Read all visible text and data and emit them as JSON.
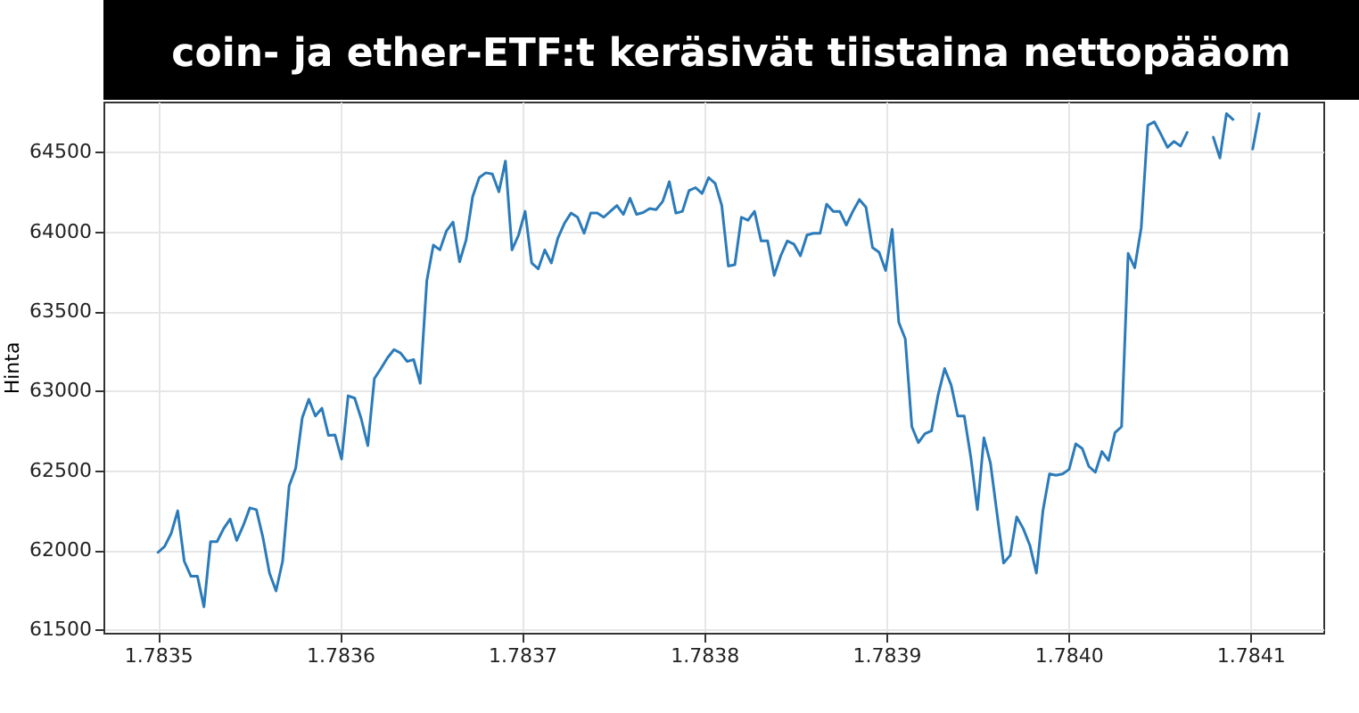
{
  "chart_data": {
    "type": "line",
    "title": "coin- ja ether-ETF:t keräsivät tiistaina nettopääom",
    "ylabel": "Hinta",
    "x": [
      1.7835,
      1.7835036,
      1.7835072,
      1.7835108,
      1.7835144,
      1.783518,
      1.7835216,
      1.7835252,
      1.7835288,
      1.7835324,
      1.783536,
      1.7835396,
      1.7835432,
      1.7835468,
      1.7835504,
      1.783554,
      1.7835576,
      1.7835612,
      1.7835648,
      1.7835684,
      1.783572,
      1.7835756,
      1.7835792,
      1.7835828,
      1.7835864,
      1.78359,
      1.7835936,
      1.7835972,
      1.7836008,
      1.7836044,
      1.783608,
      1.7836116,
      1.7836152,
      1.7836188,
      1.7836224,
      1.783626,
      1.7836296,
      1.7836332,
      1.7836368,
      1.7836404,
      1.783644,
      1.7836476,
      1.7836512,
      1.7836548,
      1.7836584,
      1.783662,
      1.7836656,
      1.7836692,
      1.7836728,
      1.7836764,
      1.78368,
      1.7836836,
      1.7836872,
      1.7836908,
      1.7836944,
      1.783698,
      1.7837016,
      1.7837052,
      1.7837088,
      1.7837124,
      1.783716,
      1.7837196,
      1.7837232,
      1.7837268,
      1.7837304,
      1.783734,
      1.7837376,
      1.7837412,
      1.7837448,
      1.7837484,
      1.783752,
      1.7837556,
      1.7837592,
      1.7837628,
      1.7837664,
      1.78377,
      1.7837736,
      1.7837772,
      1.7837808,
      1.7837844,
      1.783788,
      1.7837916,
      1.7837952,
      1.7837988,
      1.7838024,
      1.783806,
      1.7838096,
      1.7838132,
      1.7838168,
      1.7838204,
      1.783824,
      1.7838276,
      1.7838312,
      1.7838348,
      1.7838384,
      1.783842,
      1.7838456,
      1.7838492,
      1.7838528,
      1.7838564,
      1.78386,
      1.7838636,
      1.7838672,
      1.7838708,
      1.7838744,
      1.783878,
      1.7838816,
      1.7838852,
      1.7838888,
      1.7838924,
      1.783896,
      1.7838996,
      1.7839032,
      1.7839068,
      1.7839104,
      1.783914,
      1.7839176,
      1.7839212,
      1.7839248,
      1.7839284,
      1.783932,
      1.7839356,
      1.7839392,
      1.7839428,
      1.7839464,
      1.78395,
      1.7839536,
      1.7839572,
      1.7839608,
      1.7839644,
      1.783968,
      1.7839716,
      1.7839752,
      1.7839788,
      1.7839824,
      1.783986,
      1.7839896,
      1.7839932,
      1.7839968,
      1.7840004,
      1.784004,
      1.7840076,
      1.7840112,
      1.7840148,
      1.7840184,
      1.784022,
      1.7840256,
      1.7840292,
      1.7840328,
      1.7840364,
      1.78404,
      1.7840436,
      1.7840472,
      1.7840508,
      1.7840544,
      1.784058,
      1.7840616,
      1.7840652,
      1.7840688,
      1.7840724,
      1.784076,
      1.7840796,
      1.7840832,
      1.7840868,
      1.7840904,
      1.784094,
      1.7840976,
      1.7841012,
      1.7841048
    ],
    "series": [
      {
        "color": "#2b7bba",
        "values": [
          61985,
          62022,
          62104,
          62246,
          61929,
          61836,
          61836,
          61643,
          62052,
          62052,
          62134,
          62194,
          62060,
          62153,
          62264,
          62253,
          62078,
          61855,
          61743,
          61929,
          62402,
          62514,
          62830,
          62946,
          62841,
          62890,
          62719,
          62722,
          62570,
          62968,
          62953,
          62823,
          62655,
          63076,
          63139,
          63206,
          63258,
          63236,
          63184,
          63195,
          63046,
          63690,
          63914,
          63884,
          64003,
          64059,
          63809,
          63947,
          64219,
          64338,
          64368,
          64360,
          64249,
          64442,
          63884,
          63977,
          64126,
          63802,
          63765,
          63884,
          63802,
          63958,
          64051,
          64115,
          64089,
          63988,
          64115,
          64115,
          64089,
          64126,
          64163,
          64107,
          64208,
          64107,
          64118,
          64144,
          64137,
          64189,
          64312,
          64115,
          64126,
          64256,
          64275,
          64238,
          64338,
          64301,
          64163,
          63783,
          63791,
          64089,
          64070,
          64126,
          63940,
          63940,
          63724,
          63847,
          63940,
          63921,
          63847,
          63977,
          63988,
          63988,
          64171,
          64126,
          64126,
          64040,
          64126,
          64200,
          64152,
          63899,
          63869,
          63754,
          64014,
          63430,
          63325,
          62774,
          62674,
          62730,
          62748,
          62972,
          63139,
          63035,
          62841,
          62841,
          62581,
          62253,
          62704,
          62544,
          62227,
          61918,
          61966,
          62208,
          62134,
          62030,
          61855,
          62246,
          62477,
          62469,
          62477,
          62506,
          62666,
          62637,
          62525,
          62488,
          62618,
          62562,
          62737,
          62774,
          63862,
          63772,
          64025,
          64666,
          64688,
          64610,
          64528,
          64565,
          64536,
          64621,
          null,
          null,
          null,
          64591,
          64461,
          64740,
          64703,
          null,
          null,
          64517,
          64740
        ]
      }
    ],
    "xlim": [
      1.78347,
      1.78414
    ],
    "ylim": [
      61480,
      64815
    ],
    "xticks": [
      1.7835,
      1.7836,
      1.7837,
      1.7838,
      1.7839,
      {
        "value": 1.784,
        "label": "1.7840"
      },
      1.7841
    ],
    "yticks": [
      61500,
      62000,
      62500,
      63000,
      63500,
      64000,
      64500
    ],
    "grid": true,
    "marker": "none",
    "line_style": "solid"
  }
}
